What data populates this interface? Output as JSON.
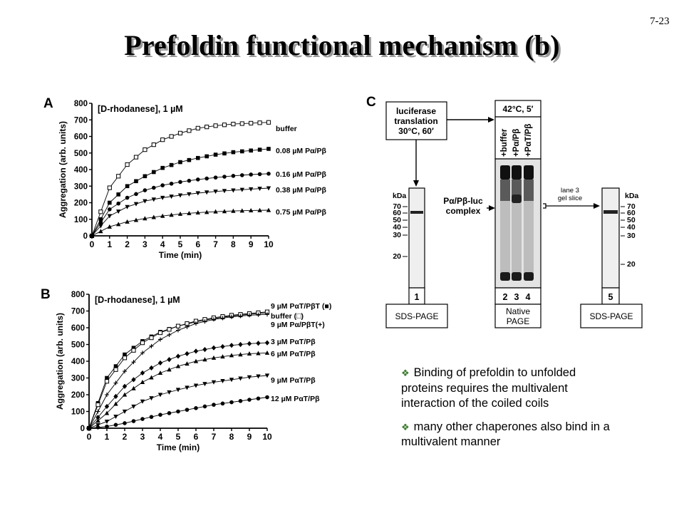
{
  "slide": {
    "number": "7-23",
    "title": "Prefoldin functional mechanism (b)"
  },
  "chart_data": [
    {
      "type": "scatter",
      "panel": "A",
      "ylabel": "Aggregation (arb. units)",
      "xlabel": "Time (min)",
      "annotation": "[D-rhodanese], 1 µM",
      "xlim": [
        0,
        10
      ],
      "ylim": [
        0,
        800
      ],
      "xticks": [
        "0",
        "1",
        "2",
        "3",
        "4",
        "5",
        "6",
        "7",
        "8",
        "9",
        "10"
      ],
      "yticks": [
        "0",
        "100",
        "200",
        "300",
        "400",
        "500",
        "600",
        "700",
        "800"
      ],
      "series": [
        {
          "name": "buffer",
          "marker": "open-square",
          "x": [
            0,
            1,
            2,
            3,
            4,
            5,
            6,
            7,
            8,
            9,
            10
          ],
          "y": [
            0,
            290,
            430,
            520,
            580,
            620,
            650,
            665,
            675,
            680,
            685
          ]
        },
        {
          "name": "0.08 µM Pα/Pβ",
          "marker": "filled-square",
          "x": [
            0,
            1,
            2,
            3,
            4,
            5,
            6,
            7,
            8,
            9,
            10
          ],
          "y": [
            0,
            200,
            300,
            360,
            410,
            445,
            470,
            490,
            505,
            515,
            525
          ]
        },
        {
          "name": "0.16 µM Pα/Pβ",
          "marker": "filled-circle",
          "x": [
            0,
            1,
            2,
            3,
            4,
            5,
            6,
            7,
            8,
            9,
            10
          ],
          "y": [
            0,
            160,
            230,
            275,
            305,
            325,
            340,
            352,
            362,
            370,
            375
          ]
        },
        {
          "name": "0.38 µM Pα/Pβ",
          "marker": "filled-triangle-down",
          "x": [
            0,
            1,
            2,
            3,
            4,
            5,
            6,
            7,
            8,
            9,
            10
          ],
          "y": [
            0,
            120,
            175,
            210,
            230,
            245,
            258,
            268,
            275,
            282,
            288
          ]
        },
        {
          "name": "0.75 µM Pα/Pβ",
          "marker": "filled-triangle-up",
          "x": [
            0,
            1,
            2,
            3,
            4,
            5,
            6,
            7,
            8,
            9,
            10
          ],
          "y": [
            0,
            55,
            85,
            105,
            120,
            132,
            140,
            146,
            150,
            153,
            155
          ]
        }
      ]
    },
    {
      "type": "scatter",
      "panel": "B",
      "ylabel": "Aggregation (arb. units)",
      "xlabel": "Time (min)",
      "annotation": "[D-rhodanese], 1 µM",
      "xlim": [
        0,
        10
      ],
      "ylim": [
        0,
        800
      ],
      "xticks": [
        "0",
        "1",
        "2",
        "3",
        "4",
        "5",
        "6",
        "7",
        "8",
        "9",
        "10"
      ],
      "yticks": [
        "0",
        "100",
        "200",
        "300",
        "400",
        "500",
        "600",
        "700",
        "800"
      ],
      "series": [
        {
          "name": "9 µM PαT/PβT (■)",
          "marker": "filled-square",
          "x": [
            0,
            1,
            2,
            3,
            4,
            5,
            6,
            7,
            8,
            9,
            10
          ],
          "y": [
            0,
            300,
            440,
            520,
            575,
            610,
            635,
            655,
            670,
            680,
            690
          ]
        },
        {
          "name": "buffer (□)",
          "marker": "open-square",
          "x": [
            0,
            1,
            2,
            3,
            4,
            5,
            6,
            7,
            8,
            9,
            10
          ],
          "y": [
            0,
            280,
            420,
            510,
            570,
            610,
            640,
            660,
            675,
            685,
            695
          ]
        },
        {
          "name": "9 µM Pα/PβT(+)",
          "marker": "plus",
          "x": [
            0,
            1,
            2,
            3,
            4,
            5,
            6,
            7,
            8,
            9,
            10
          ],
          "y": [
            0,
            200,
            340,
            450,
            530,
            585,
            625,
            650,
            665,
            675,
            680
          ]
        },
        {
          "name": "3 µM PαT/Pβ",
          "marker": "filled-diamond",
          "x": [
            0,
            1,
            2,
            3,
            4,
            5,
            6,
            7,
            8,
            9,
            10
          ],
          "y": [
            0,
            130,
            250,
            330,
            390,
            430,
            460,
            480,
            495,
            505,
            510
          ]
        },
        {
          "name": "6 µM PαT/Pβ",
          "marker": "filled-triangle-up",
          "x": [
            0,
            1,
            2,
            3,
            4,
            5,
            6,
            7,
            8,
            9,
            10
          ],
          "y": [
            0,
            90,
            200,
            275,
            330,
            370,
            400,
            420,
            435,
            445,
            450
          ]
        },
        {
          "name": "9 µM PαT/Pβ",
          "marker": "filled-triangle-down",
          "x": [
            0,
            1,
            2,
            3,
            4,
            5,
            6,
            7,
            8,
            9,
            10
          ],
          "y": [
            0,
            40,
            100,
            160,
            200,
            230,
            255,
            275,
            290,
            305,
            315
          ]
        },
        {
          "name": "12 µM PαT/Pβ",
          "marker": "filled-circle",
          "x": [
            0,
            1,
            2,
            3,
            4,
            5,
            6,
            7,
            8,
            9,
            10
          ],
          "y": [
            0,
            10,
            30,
            55,
            80,
            100,
            120,
            140,
            155,
            170,
            185
          ]
        }
      ]
    }
  ],
  "panel_c": {
    "label": "C",
    "box_translation": [
      "luciferase",
      "translation",
      "30°C, 60′"
    ],
    "heat_box": "42°C, 5′",
    "lane_headers": [
      "+buffer",
      "+Pα/Pβ",
      "+PαT/Pβ"
    ],
    "complex_label": [
      "Pα/Pβ-luc",
      "complex"
    ],
    "slice_label": [
      "lane 3",
      "gel slice"
    ],
    "kda_title": "kDa",
    "kda_left": [
      "70",
      "60",
      "50",
      "40",
      "30",
      "20"
    ],
    "kda_right": [
      "70",
      "60",
      "50",
      "40",
      "30",
      "20"
    ],
    "lane_num_1": "1",
    "lane_nums_mid": [
      "2",
      "3",
      "4"
    ],
    "lane_num_5": "5",
    "left_gel": "SDS-PAGE",
    "mid_gel": [
      "Native",
      "PAGE"
    ],
    "right_gel": "SDS-PAGE"
  },
  "bullets": [
    "Binding of prefoldin to unfolded proteins requires the multivalent interaction of the coiled coils",
    "many other chaperones also bind in a multivalent manner"
  ]
}
